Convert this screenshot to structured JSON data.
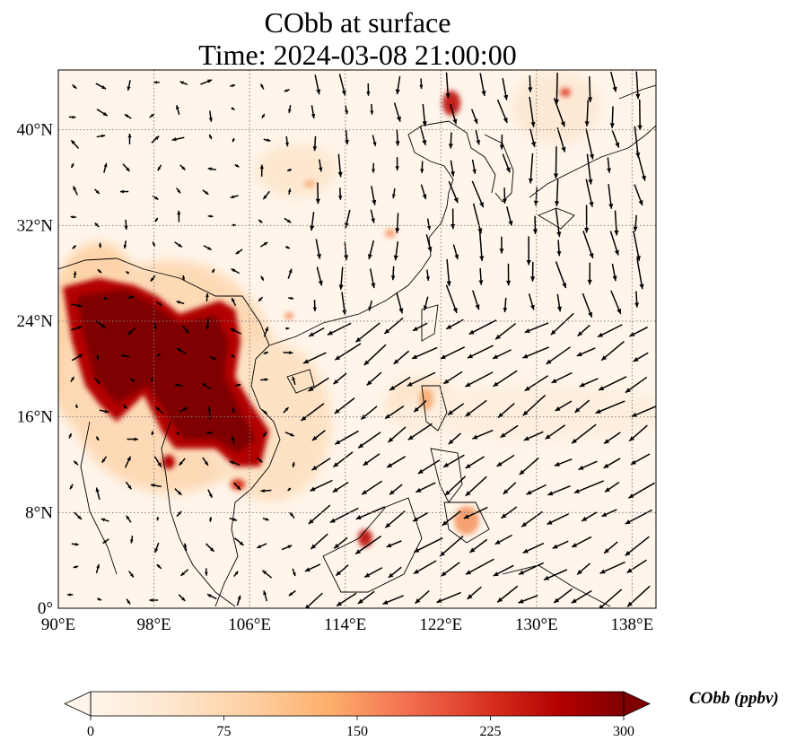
{
  "title": {
    "line1": "CObb at surface",
    "line2": "Time: 2024-03-08 21:00:00"
  },
  "map": {
    "lon_range": [
      90,
      140
    ],
    "lat_range": [
      0,
      45
    ],
    "x_ticks": [
      {
        "value": 90,
        "label": "90°E"
      },
      {
        "value": 98,
        "label": "98°E"
      },
      {
        "value": 106,
        "label": "106°E"
      },
      {
        "value": 114,
        "label": "114°E"
      },
      {
        "value": 122,
        "label": "122°E"
      },
      {
        "value": 130,
        "label": "130°E"
      },
      {
        "value": 138,
        "label": "138°E"
      }
    ],
    "y_ticks": [
      {
        "value": 0,
        "label": "0°"
      },
      {
        "value": 8,
        "label": "8°N"
      },
      {
        "value": 16,
        "label": "16°N"
      },
      {
        "value": 24,
        "label": "24°N"
      },
      {
        "value": 32,
        "label": "32°N"
      },
      {
        "value": 40,
        "label": "40°N"
      }
    ],
    "gridlines": true,
    "colors": {
      "background": "#fff5eb",
      "coastline": "#000000",
      "grid": "#7f7f7f",
      "vectors": "#000000"
    }
  },
  "colorbar": {
    "label": "CObb (ppbv)",
    "ticks": [
      {
        "value": 0,
        "label": "0"
      },
      {
        "value": 75,
        "label": "75"
      },
      {
        "value": 150,
        "label": "150"
      },
      {
        "value": 225,
        "label": "225"
      },
      {
        "value": 300,
        "label": "300"
      }
    ],
    "range": [
      0,
      300
    ],
    "extend": "both",
    "colormap": [
      "#fff5eb",
      "#fee6ce",
      "#fdd0a2",
      "#fdae6b",
      "#fd8d3c",
      "#f16913",
      "#d94801",
      "#a63603",
      "#7f2704",
      "#7f0000"
    ]
  }
}
